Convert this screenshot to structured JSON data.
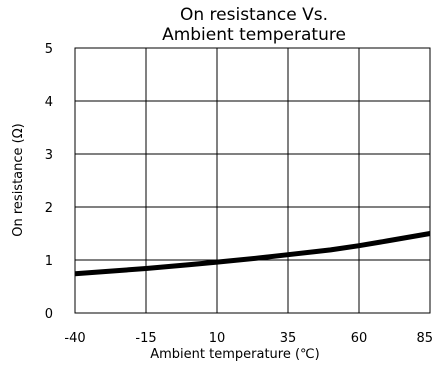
{
  "chart_data": {
    "type": "line",
    "title": [
      "On resistance Vs.",
      "Ambient temperature"
    ],
    "xlabel": "Ambient temperature (℃)",
    "ylabel": "On resistance (Ω)",
    "xlim": [
      -40,
      85
    ],
    "ylim": [
      0,
      5
    ],
    "xticks": [
      -40,
      -15,
      10,
      35,
      60,
      85
    ],
    "yticks": [
      0,
      1,
      2,
      3,
      4,
      5
    ],
    "grid": true,
    "series": [
      {
        "color": "#000000",
        "x": [
          -40,
          -25,
          -15,
          0,
          10,
          25,
          35,
          50,
          60,
          70,
          85
        ],
        "y": [
          0.74,
          0.8,
          0.84,
          0.91,
          0.96,
          1.04,
          1.1,
          1.19,
          1.27,
          1.36,
          1.5
        ]
      }
    ]
  }
}
